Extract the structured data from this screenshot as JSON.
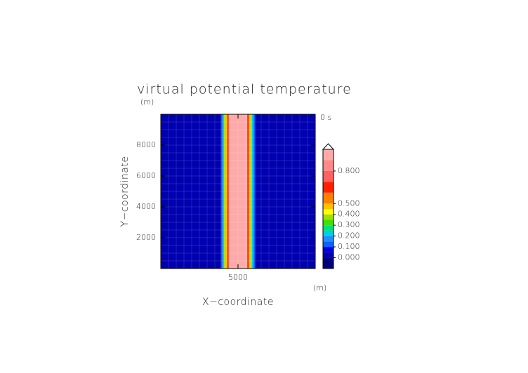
{
  "chart_data": {
    "type": "heatmap",
    "title": "virtual potential temperature",
    "y_unit": "(m)",
    "x_unit": "(m)",
    "time_label": "0 s",
    "xlabel": "X−coordinate",
    "ylabel": "Y−coordinate",
    "xlim": [
      0,
      10000
    ],
    "ylim": [
      0,
      10000
    ],
    "xticks": [
      5000
    ],
    "yticks": [
      2000,
      4000,
      6000,
      8000
    ],
    "x_edges": [
      0,
      3900,
      4000,
      4100,
      4200,
      4300,
      4400,
      5600,
      5700,
      5800,
      5900,
      6000,
      6100,
      10000
    ],
    "values": [
      0,
      0.12,
      0.22,
      0.37,
      0.47,
      0.65,
      0.9,
      0.65,
      0.47,
      0.37,
      0.22,
      0.12,
      0
    ],
    "levels": [
      -0.1,
      0,
      0.05,
      0.1,
      0.15,
      0.2,
      0.25,
      0.3,
      0.35,
      0.4,
      0.45,
      0.5,
      0.6,
      0.7,
      0.8,
      0.9,
      1.0
    ],
    "colors": [
      "#00007f",
      "#0000b0",
      "#0000e0",
      "#1060ff",
      "#2090ff",
      "#00d0e0",
      "#00e080",
      "#40e000",
      "#a0e000",
      "#ffff00",
      "#ffc000",
      "#ff8000",
      "#ff2000",
      "#ff6060",
      "#ff8888",
      "#ffaaaa"
    ],
    "colorbar_ticks": [
      {
        "value": 0,
        "label": "0.000"
      },
      {
        "value": 0.1,
        "label": "0.100"
      },
      {
        "value": 0.2,
        "label": "0.200"
      },
      {
        "value": 0.3,
        "label": "0.300"
      },
      {
        "value": 0.4,
        "label": "0.400"
      },
      {
        "value": 0.5,
        "label": "0.500"
      },
      {
        "value": 0.8,
        "label": "0.800"
      }
    ]
  }
}
